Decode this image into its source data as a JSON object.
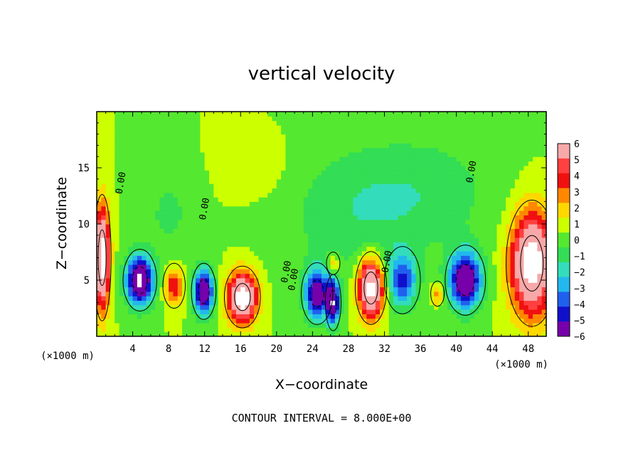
{
  "chart_data": {
    "type": "heatmap",
    "title": "vertical velocity",
    "xlabel": "X−coordinate",
    "ylabel": "Z−coordinate",
    "x_unit": "(×1000 m)",
    "x_ticks": [
      "4",
      "8",
      "12",
      "16",
      "20",
      "24",
      "28",
      "32",
      "36",
      "40",
      "44",
      "48"
    ],
    "x_tick_values": [
      4,
      8,
      12,
      16,
      20,
      24,
      28,
      32,
      36,
      40,
      44,
      48
    ],
    "y_ticks": [
      "5",
      "10",
      "15"
    ],
    "y_tick_values": [
      5,
      10,
      15
    ],
    "xlim": [
      0,
      50
    ],
    "ylim": [
      0,
      20
    ],
    "footnote": "CONTOUR INTERVAL = 8.000E+00",
    "contour_labels": [
      "0.00",
      "0.00",
      "0.00",
      "0.00",
      "0.00",
      "0.00"
    ],
    "colorbar": {
      "labels": [
        "6",
        "5",
        "4",
        "3",
        "2",
        "1",
        "0",
        "−1",
        "−2",
        "−3",
        "−4",
        "−5",
        "−6"
      ],
      "values": [
        6,
        5,
        4,
        3,
        2,
        1,
        0,
        -1,
        -2,
        -3,
        -4,
        -5,
        -6
      ],
      "colors": [
        "#f8a8a8",
        "#ff4040",
        "#f01010",
        "#ff8800",
        "#ffd800",
        "#ccff00",
        "#55e830",
        "#33dd55",
        "#33ddbb",
        "#22b8ee",
        "#2060ee",
        "#1010cc",
        "#7700aa"
      ]
    },
    "background_value": 0.5,
    "features": [
      {
        "x": 0.6,
        "z": 7,
        "w": 0.8,
        "h": 4.5,
        "w_ms": 9
      },
      {
        "x": 4.8,
        "z": 5,
        "w": 1.5,
        "h": 2.2,
        "w_ms": -9
      },
      {
        "x": 8.6,
        "z": 4.5,
        "w": 1.0,
        "h": 1.6,
        "w_ms": 4
      },
      {
        "x": 11.9,
        "z": 4.0,
        "w": 1.1,
        "h": 2.0,
        "w_ms": -8
      },
      {
        "x": 16.2,
        "z": 3.5,
        "w": 1.6,
        "h": 2.2,
        "w_ms": 9
      },
      {
        "x": 24.5,
        "z": 3.8,
        "w": 1.4,
        "h": 2.2,
        "w_ms": -7
      },
      {
        "x": 26.3,
        "z": 3.0,
        "w": 0.7,
        "h": 2.0,
        "w_ms": -7
      },
      {
        "x": 26.3,
        "z": 6.5,
        "w": 0.6,
        "h": 0.8,
        "w_ms": 3
      },
      {
        "x": 30.5,
        "z": 4.3,
        "w": 1.4,
        "h": 2.6,
        "w_ms": 9
      },
      {
        "x": 34.0,
        "z": 5.0,
        "w": 1.6,
        "h": 2.4,
        "w_ms": -5
      },
      {
        "x": 37.9,
        "z": 3.8,
        "w": 0.6,
        "h": 0.9,
        "w_ms": 3
      },
      {
        "x": 41.0,
        "z": 5.0,
        "w": 1.8,
        "h": 2.5,
        "w_ms": -8
      },
      {
        "x": 48.4,
        "z": 6.5,
        "w": 2.3,
        "h": 4.5,
        "w_ms": 9
      },
      {
        "x": 28.5,
        "z": 11,
        "w": 8,
        "h": 6,
        "w_ms": -1.6
      },
      {
        "x": 37.0,
        "z": 13,
        "w": 8,
        "h": 5,
        "w_ms": -1.4
      },
      {
        "x": 8.0,
        "z": 11,
        "w": 3,
        "h": 4,
        "w_ms": -1.2
      },
      {
        "x": 18.0,
        "z": 15,
        "w": 4,
        "h": 3,
        "w_ms": 0.7
      }
    ]
  }
}
